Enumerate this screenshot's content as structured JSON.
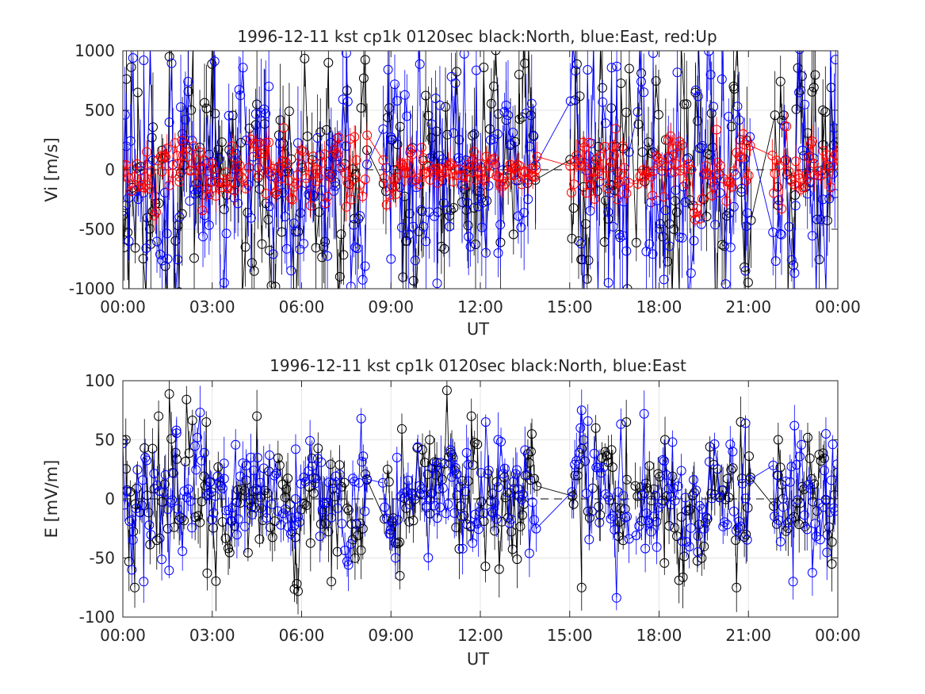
{
  "chart_data": [
    {
      "type": "scatter",
      "title": "1996-12-11 kst cp1k 0120sec black:North, blue:East, red:Up",
      "xlabel": "UT",
      "ylabel": "Vi [m/s]",
      "xlim": [
        0,
        24
      ],
      "ylim": [
        -1000,
        1000
      ],
      "xticks": [
        0,
        3,
        6,
        9,
        12,
        15,
        18,
        21,
        24
      ],
      "xtick_labels": [
        "00:00",
        "03:00",
        "06:00",
        "09:00",
        "12:00",
        "15:00",
        "18:00",
        "21:00",
        "00:00"
      ],
      "yticks": [
        -1000,
        -500,
        0,
        500,
        1000
      ],
      "ytick_labels": [
        "-1000",
        "-500",
        "0",
        "500",
        "1000"
      ],
      "grid": true,
      "zero_line": "dashed",
      "markers": "open circles with vertical error bars, connected by lines",
      "series_colors": {
        "North": "#000000",
        "East": "#0000ff",
        "Up": "#ff0000"
      },
      "active_intervals_hours": [
        [
          0,
          2.3
        ],
        [
          2.3,
          5.5
        ],
        [
          5.5,
          8.2
        ],
        [
          8.7,
          13.9
        ],
        [
          15.0,
          17.0
        ],
        [
          17.2,
          21.1
        ],
        [
          21.8,
          24
        ]
      ],
      "series": [
        {
          "name": "North",
          "color": "#000000",
          "amplitude": 520,
          "clip": 1000,
          "x_sample": [
            0.1,
            0.5,
            1.0,
            2.0,
            3.0,
            4.5,
            6.9,
            9.5,
            11.8,
            13.3,
            15.3,
            17.0,
            18.5,
            20.5,
            22.0,
            23.5
          ],
          "y_sample": [
            -300,
            650,
            -350,
            300,
            -100,
            550,
            900,
            -600,
            300,
            800,
            -600,
            850,
            -500,
            700,
            -300,
            500
          ]
        },
        {
          "name": "East",
          "color": "#0000ff",
          "amplitude": 520,
          "clip": 1000,
          "x_sample": [
            0.2,
            0.7,
            1.5,
            2.8,
            3.4,
            4.9,
            7.5,
            9.0,
            10.5,
            12.6,
            15.6,
            16.3,
            17.8,
            20.9,
            22.7,
            23.9
          ],
          "y_sample": [
            -600,
            920,
            -750,
            50,
            -950,
            700,
            980,
            -750,
            600,
            -700,
            840,
            -950,
            980,
            -850,
            650,
            -200
          ]
        },
        {
          "name": "Up",
          "color": "#ff0000",
          "amplitude": 150,
          "clip": 400,
          "x_sample": [
            0.05,
            0.8,
            1.9,
            3.0,
            4.8,
            6.5,
            8.2,
            9.5,
            11.0,
            13.9,
            15.5,
            16.6,
            18.3,
            20.3,
            21.8,
            23.2
          ],
          "y_sample": [
            -20,
            150,
            -100,
            50,
            -200,
            0,
            290,
            -30,
            40,
            110,
            190,
            -250,
            250,
            -100,
            120,
            50
          ]
        }
      ]
    },
    {
      "type": "scatter",
      "title": "1996-12-11 kst cp1k 0120sec black:North, blue:East",
      "xlabel": "UT",
      "ylabel": "E [mV/m]",
      "xlim": [
        0,
        24
      ],
      "ylim": [
        -100,
        100
      ],
      "xticks": [
        0,
        3,
        6,
        9,
        12,
        15,
        18,
        21,
        24
      ],
      "xtick_labels": [
        "00:00",
        "03:00",
        "06:00",
        "09:00",
        "12:00",
        "15:00",
        "18:00",
        "21:00",
        "00:00"
      ],
      "yticks": [
        -100,
        -50,
        0,
        50,
        100
      ],
      "ytick_labels": [
        "-100",
        "-50",
        "0",
        "50",
        "100"
      ],
      "grid": true,
      "zero_line": "dashed",
      "markers": "open circles with vertical error bars, connected by lines",
      "series_colors": {
        "North": "#000000",
        "East": "#0000ff"
      },
      "active_intervals_hours": [
        [
          0,
          2.3
        ],
        [
          2.3,
          5.5
        ],
        [
          5.5,
          8.2
        ],
        [
          8.7,
          13.9
        ],
        [
          15.0,
          17.0
        ],
        [
          17.2,
          21.1
        ],
        [
          21.8,
          24
        ]
      ],
      "series": [
        {
          "name": "North",
          "color": "#000000",
          "amplitude": 28,
          "clip": 100,
          "x_sample": [
            0.1,
            0.4,
            1.2,
            2.8,
            4.5,
            7.0,
            9.3,
            10.3,
            11.7,
            13.7,
            15.4,
            16.9,
            18.2,
            20.6,
            22.0,
            23.8
          ],
          "y_sample": [
            50,
            -75,
            70,
            65,
            70,
            -70,
            -65,
            50,
            70,
            40,
            -75,
            65,
            50,
            -75,
            50,
            -55
          ]
        },
        {
          "name": "East",
          "color": "#0000ff",
          "amplitude": 25,
          "clip": 100,
          "x_sample": [
            0.3,
            0.7,
            1.8,
            3.4,
            5.8,
            8.0,
            9.2,
            11.0,
            12.6,
            15.4,
            16.0,
            17.5,
            19.3,
            20.9,
            22.5,
            23.6
          ],
          "y_sample": [
            -60,
            -70,
            58,
            30,
            42,
            68,
            35,
            30,
            50,
            75,
            -20,
            72,
            -45,
            64,
            -70,
            55
          ]
        }
      ]
    }
  ]
}
